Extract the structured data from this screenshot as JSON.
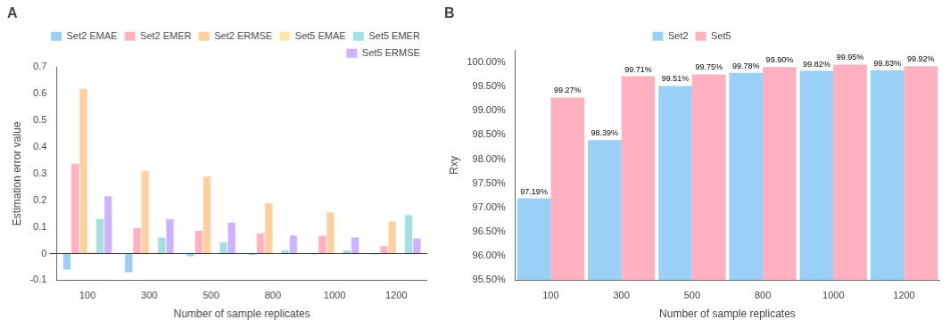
{
  "chart_data": [
    {
      "type": "bar",
      "title": "A",
      "categories": [
        100,
        300,
        500,
        800,
        1000,
        1200
      ],
      "xlabel": "Number of sample replicates",
      "ylabel": "Estimation error value",
      "ylim": [
        -0.1,
        0.7
      ],
      "yticks": [
        -0.1,
        0,
        0.1,
        0.2,
        0.3,
        0.4,
        0.5,
        0.6,
        0.7
      ],
      "series": [
        {
          "name": "Set2 EMAE",
          "values": [
            -0.06,
            -0.07,
            -0.01,
            -0.005,
            -0.003,
            -0.003
          ]
        },
        {
          "name": "Set2 EMER",
          "values": [
            0.338,
            0.096,
            0.085,
            0.076,
            0.067,
            0.028
          ]
        },
        {
          "name": "Set2 ERMSE",
          "values": [
            0.618,
            0.31,
            0.29,
            0.19,
            0.155,
            0.12
          ]
        },
        {
          "name": "Set5 EMAE",
          "values": [
            0.005,
            0.003,
            0.001,
            0.001,
            0.001,
            0.001
          ]
        },
        {
          "name": "Set5 EMER",
          "values": [
            0.13,
            0.06,
            0.043,
            0.013,
            0.012,
            0.145
          ]
        },
        {
          "name": "Set5 ERMSE",
          "values": [
            0.215,
            0.13,
            0.116,
            0.068,
            0.06,
            0.057
          ]
        }
      ],
      "legend": "upper right",
      "grid": false
    },
    {
      "type": "bar",
      "title": "B",
      "categories": [
        100,
        300,
        500,
        800,
        1000,
        1200
      ],
      "xlabel": "Number of sample replicates",
      "ylabel": "Rxy",
      "ylim": [
        0.955,
        1.0025
      ],
      "yticks": [
        {
          "value": 0.955,
          "label": "95.50%"
        },
        {
          "value": 0.96,
          "label": "96.00%"
        },
        {
          "value": 0.965,
          "label": "96.50%"
        },
        {
          "value": 0.97,
          "label": "97.00%"
        },
        {
          "value": 0.975,
          "label": "97.50%"
        },
        {
          "value": 0.98,
          "label": "98.00%"
        },
        {
          "value": 0.985,
          "label": "98.50%"
        },
        {
          "value": 0.99,
          "label": "99.00%"
        },
        {
          "value": 0.995,
          "label": "99.50%"
        },
        {
          "value": 1.0,
          "label": "100.00%"
        }
      ],
      "series": [
        {
          "name": "Set2",
          "values": [
            0.9719,
            0.9839,
            0.9951,
            0.9978,
            0.9982,
            0.9983
          ],
          "value_labels": [
            "97.19%",
            "98.39%",
            "99.51%",
            "99.78%",
            "99.82%",
            "99.83%"
          ]
        },
        {
          "name": "Set5",
          "values": [
            0.9927,
            0.9971,
            0.9975,
            0.999,
            0.9995,
            0.9992
          ],
          "value_labels": [
            "99.27%",
            "99.71%",
            "99.75%",
            "99.90%",
            "99.95%",
            "99.92%"
          ]
        }
      ],
      "data_labels": true,
      "legend": "upper center",
      "grid": false
    }
  ]
}
